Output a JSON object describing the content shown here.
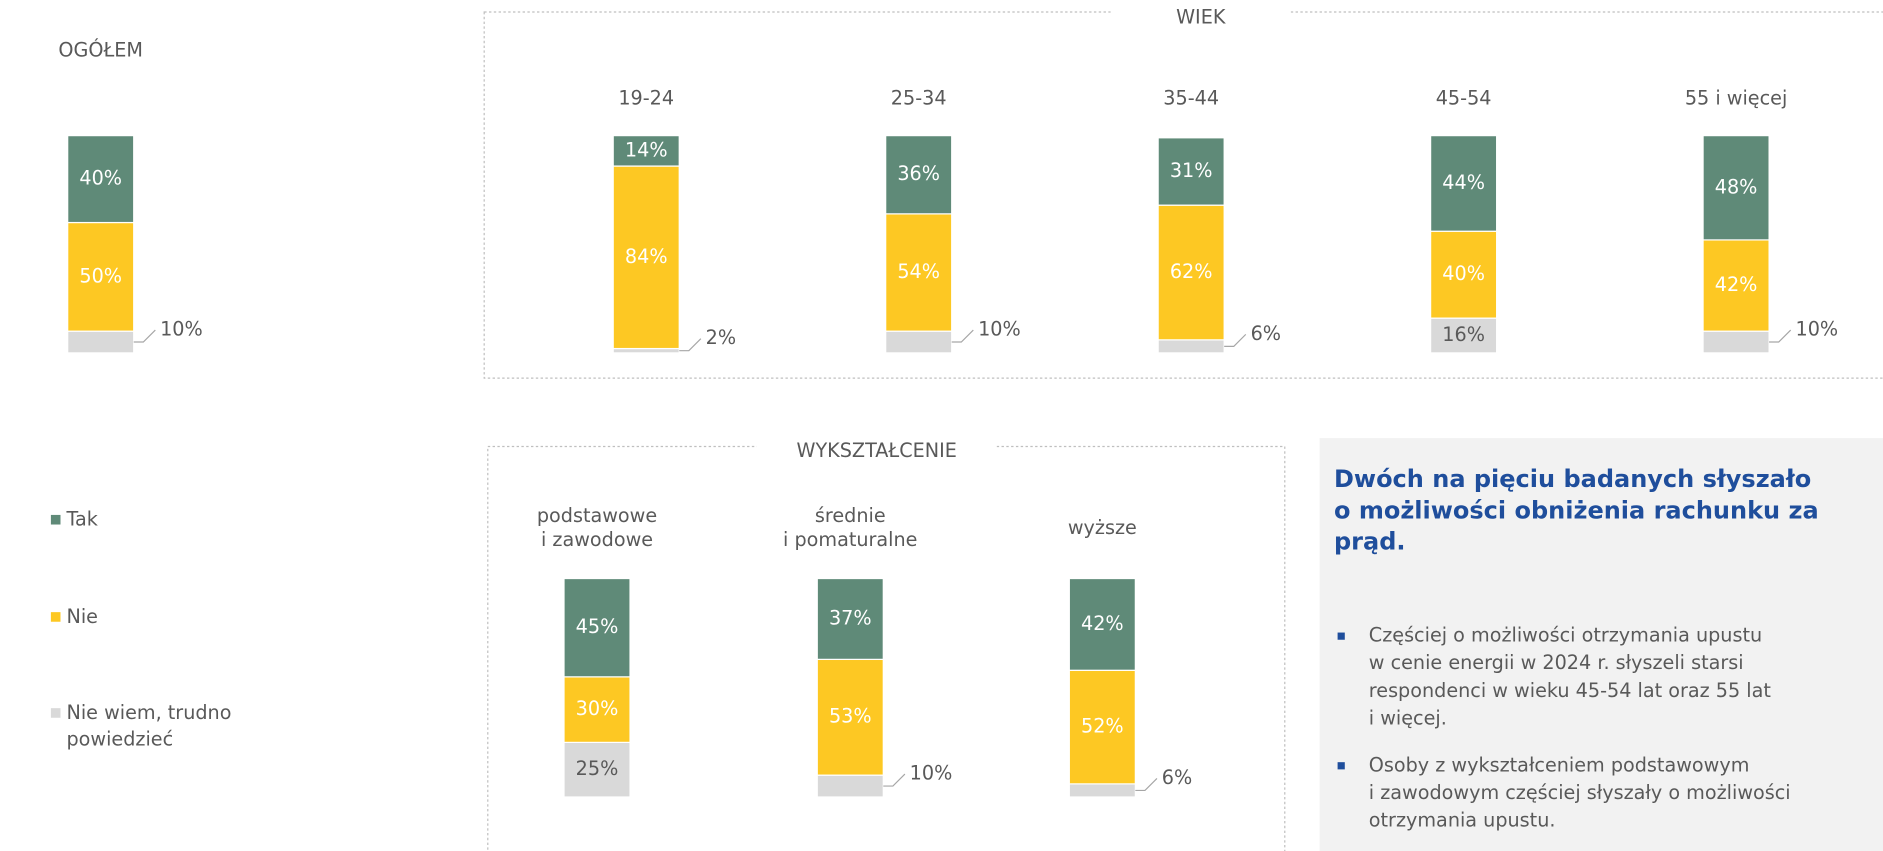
{
  "chart_data": [
    {
      "type": "stacked_bar",
      "categories": [
        "OGÓŁEM"
      ],
      "ylim": [
        0,
        100
      ],
      "series": [
        {
          "name": "Tak",
          "color": "#5f8a78",
          "values": [
            40
          ],
          "value_labels": [
            "40%"
          ]
        },
        {
          "name": "Nie",
          "color": "#fdc823",
          "values": [
            50
          ],
          "value_labels": [
            "50%"
          ]
        },
        {
          "name": "Nie wiem, trudno\npowiedzieć",
          "color": "#d9d9d9",
          "values": [
            10
          ],
          "value_labels": [
            "10%"
          ]
        }
      ]
    },
    {
      "type": "stacked_bar",
      "title": "WIEK",
      "categories": [
        "19-24",
        "25-34",
        "35-44",
        "45-54",
        "55 i więcej"
      ],
      "ylim": [
        0,
        100
      ],
      "series": [
        {
          "color": "#5f8a78",
          "values": [
            14,
            36,
            31,
            44,
            48
          ],
          "value_labels": [
            "14%",
            "36%",
            "31%",
            "44%",
            "48%"
          ]
        },
        {
          "color": "#fdc823",
          "values": [
            84,
            54,
            62,
            40,
            42
          ],
          "value_labels": [
            "84%",
            "54%",
            "62%",
            "40%",
            "42%"
          ]
        },
        {
          "color": "#d9d9d9",
          "values": [
            2,
            10,
            6,
            16,
            10
          ],
          "value_labels": [
            "2%",
            "10%",
            "6%",
            "16%",
            "10%"
          ]
        }
      ]
    },
    {
      "type": "stacked_bar",
      "title": "WYKSZTAŁCENIE",
      "categories": [
        "podstawowe\ni zawodowe",
        "średnie\ni pomaturalne",
        "wyższe"
      ],
      "ylim": [
        0,
        100
      ],
      "series": [
        {
          "color": "#5f8a78",
          "values": [
            45,
            37,
            42
          ],
          "value_labels": [
            "45%",
            "37%",
            "42%"
          ]
        },
        {
          "color": "#fdc823",
          "values": [
            30,
            53,
            52
          ],
          "value_labels": [
            "30%",
            "53%",
            "52%"
          ]
        },
        {
          "color": "#d9d9d9",
          "values": [
            25,
            10,
            6
          ],
          "value_labels": [
            "25%",
            "10%",
            "6%"
          ]
        }
      ]
    }
  ],
  "text_box": {
    "heading": [
      "Dwóch na pięciu badanych słyszało",
      "o możliwości obniżenia rachunku za",
      "prąd."
    ],
    "bullets": [
      [
        "Częściej o możliwości otrzymania upustu",
        "w cenie energii w 2024 r. słyszeli starsi",
        "respondenci w wieku 45-54 lat oraz 55 lat",
        "i więcej."
      ],
      [
        "Osoby z wykształceniem podstawowym",
        "i zawodowym częściej słyszały o możliwości",
        "otrzymania upustu."
      ]
    ]
  }
}
